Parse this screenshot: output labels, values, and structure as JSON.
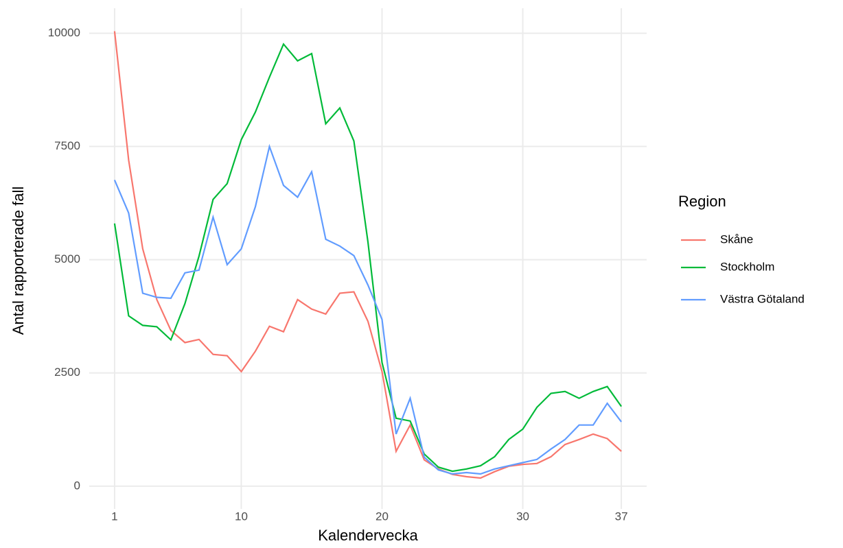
{
  "chart_data": {
    "type": "line",
    "x_label": "Kalendervecka",
    "y_label": "Antal rapporterade fall",
    "legend_title": "Region",
    "x": [
      1,
      2,
      3,
      4,
      5,
      6,
      7,
      8,
      9,
      10,
      11,
      12,
      13,
      14,
      15,
      16,
      17,
      18,
      19,
      20,
      21,
      22,
      23,
      24,
      25,
      26,
      27,
      28,
      29,
      30,
      31,
      32,
      33,
      34,
      35,
      36,
      37
    ],
    "series": [
      {
        "name": "Skåne",
        "color": "#f8766d",
        "values": [
          10045,
          7200,
          5240,
          4120,
          3440,
          3170,
          3240,
          2910,
          2880,
          2530,
          2980,
          3530,
          3410,
          4120,
          3910,
          3800,
          4260,
          4290,
          3640,
          2530,
          770,
          1350,
          580,
          380,
          260,
          210,
          180,
          320,
          440,
          480,
          500,
          650,
          920,
          1030,
          1150,
          1050,
          770
        ]
      },
      {
        "name": "Stockholm",
        "color": "#00ba38",
        "values": [
          5800,
          3760,
          3550,
          3520,
          3230,
          4030,
          5080,
          6330,
          6680,
          7650,
          8260,
          9030,
          9760,
          9390,
          9550,
          8000,
          8350,
          7620,
          5390,
          2730,
          1500,
          1440,
          710,
          420,
          330,
          380,
          450,
          650,
          1030,
          1260,
          1740,
          2050,
          2090,
          1940,
          2090,
          2200,
          1760
        ]
      },
      {
        "name": "Västra Götaland",
        "color": "#619cff",
        "values": [
          6760,
          6030,
          4260,
          4170,
          4150,
          4710,
          4770,
          5940,
          4890,
          5240,
          6170,
          7500,
          6640,
          6380,
          6940,
          5450,
          5300,
          5090,
          4440,
          3680,
          1150,
          1940,
          640,
          360,
          270,
          300,
          270,
          380,
          450,
          520,
          590,
          820,
          1030,
          1350,
          1350,
          1830,
          1420
        ]
      }
    ],
    "xlim": [
      -0.8,
      38.8
    ],
    "xticks": [
      1,
      10,
      20,
      30,
      37
    ],
    "ylim": [
      -502,
      10552
    ],
    "yticks": [
      0,
      2500,
      5000,
      7500,
      10000
    ],
    "grid": true,
    "legend": "right"
  }
}
